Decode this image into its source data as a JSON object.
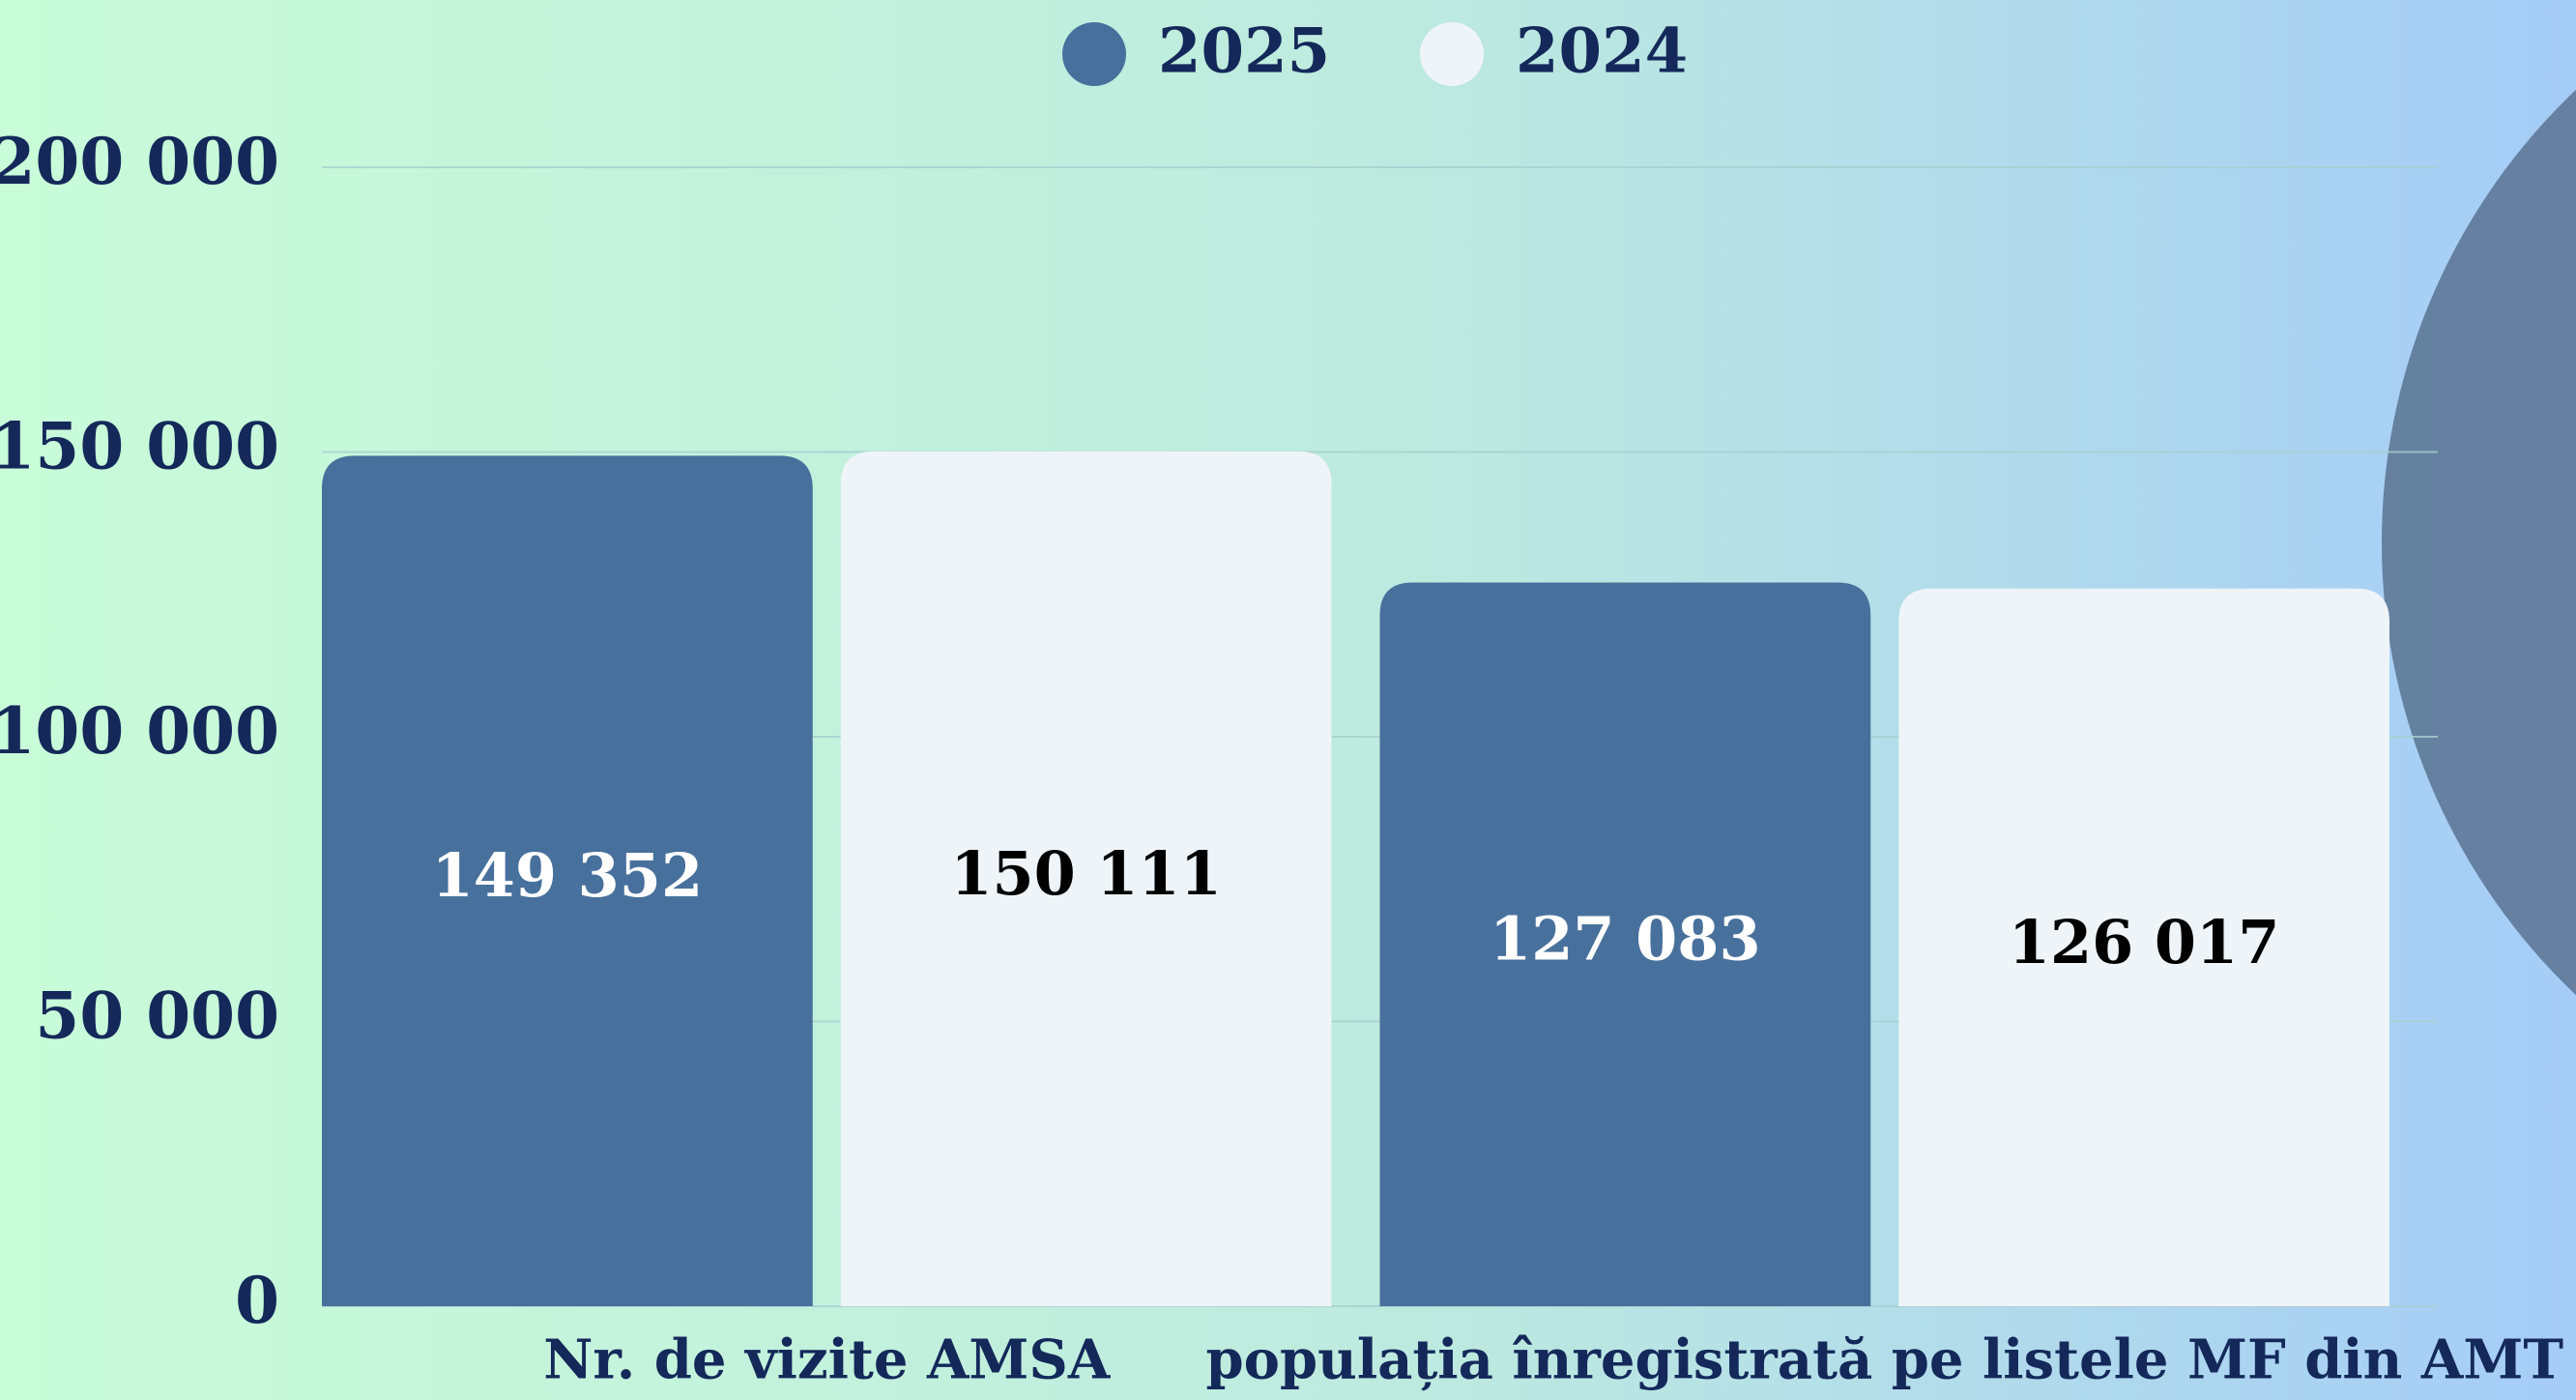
{
  "chart_data": {
    "type": "bar",
    "categories": [
      "Nr. de vizite AMSA",
      "populația înregistrată pe listele MF din AMT"
    ],
    "series": [
      {
        "name": "2025",
        "color": "#48709c",
        "values": [
          149352,
          127083
        ],
        "value_labels": [
          "149 352",
          "127 083"
        ]
      },
      {
        "name": "2024",
        "color": "#eef4f8",
        "values": [
          150111,
          126017
        ],
        "value_labels": [
          "150 111",
          "126 017"
        ]
      }
    ],
    "ylim": [
      0,
      200000
    ],
    "yticks": [
      0,
      {
        "value": 50000,
        "label": "50 000"
      },
      {
        "value": 100000,
        "label": "100 000"
      },
      {
        "value": 150000,
        "label": "150 000"
      },
      {
        "value": 200000,
        "label": "200 000"
      }
    ],
    "grid": true
  }
}
